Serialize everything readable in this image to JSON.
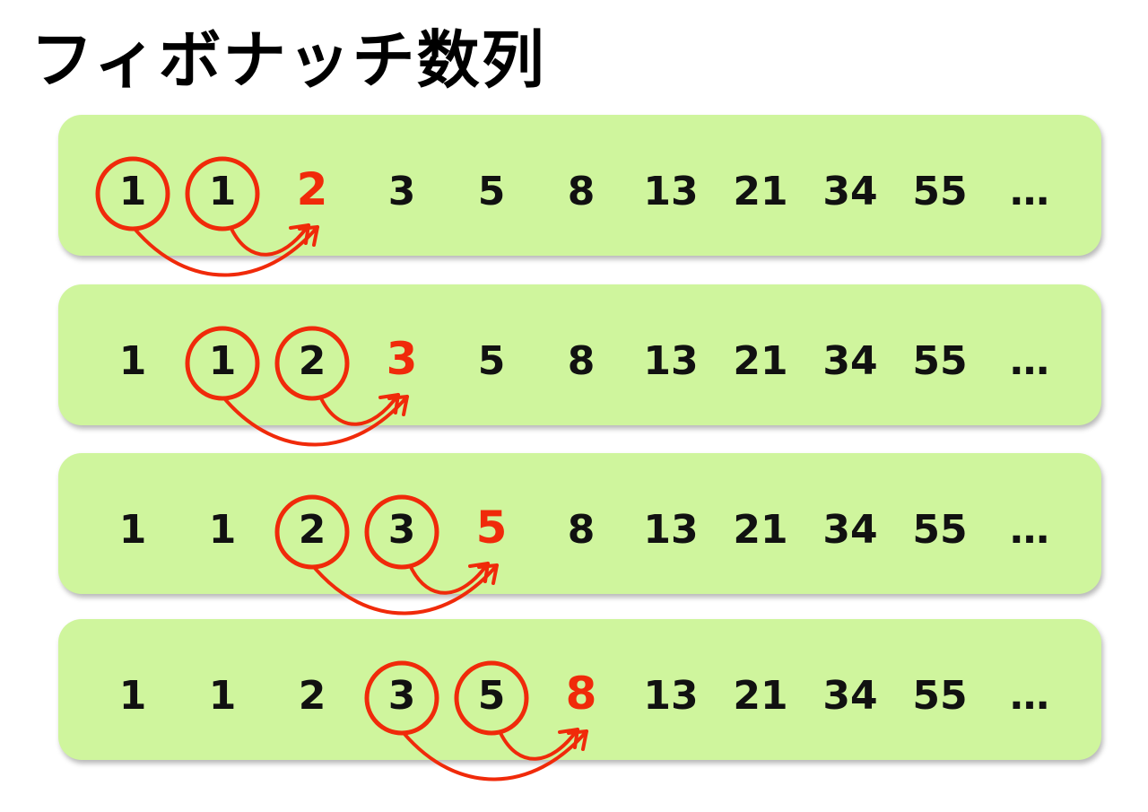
{
  "title": "フィボナッチ数列",
  "accent_color": "#f02a0a",
  "panel_color": "#cff59d",
  "rows": [
    {
      "terms": [
        "1",
        "1",
        "2",
        "3",
        "5",
        "8",
        "13",
        "21",
        "34",
        "55",
        "…"
      ],
      "circled": [
        0,
        1
      ],
      "highlight": 2
    },
    {
      "terms": [
        "1",
        "1",
        "2",
        "3",
        "5",
        "8",
        "13",
        "21",
        "34",
        "55",
        "…"
      ],
      "circled": [
        1,
        2
      ],
      "highlight": 3
    },
    {
      "terms": [
        "1",
        "1",
        "2",
        "3",
        "5",
        "8",
        "13",
        "21",
        "34",
        "55",
        "…"
      ],
      "circled": [
        2,
        3
      ],
      "highlight": 4
    },
    {
      "terms": [
        "1",
        "1",
        "2",
        "3",
        "5",
        "8",
        "13",
        "21",
        "34",
        "55",
        "…"
      ],
      "circled": [
        3,
        4
      ],
      "highlight": 5
    }
  ]
}
